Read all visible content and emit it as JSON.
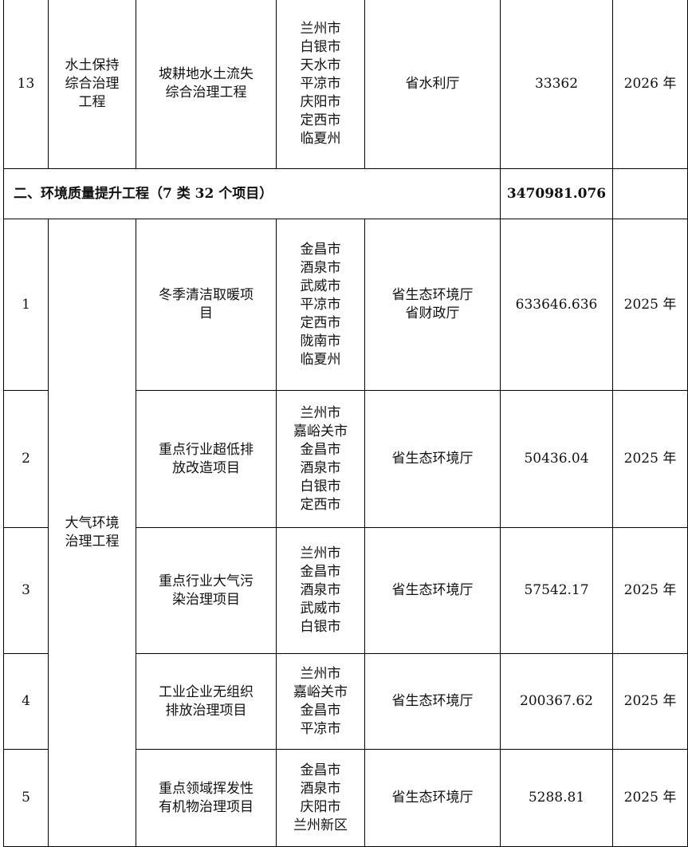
{
  "rows_top": [
    {
      "no": "13",
      "category": "水土保持\n综合治理\n工程",
      "project": "坡耕地水土流失\n综合治理工程",
      "regions": "兰州市\n白银市\n天水市\n平凉市\n庆阳市\n定西市\n临夏州",
      "dept": "省水利厅",
      "amount": "33362",
      "year": "2026 年"
    }
  ],
  "section": {
    "title": "二、环境质量提升工程（7 类 32 个项目）",
    "amount": "3470981.076",
    "year": ""
  },
  "group_category": "大气环境\n治理工程",
  "rows": [
    {
      "no": "1",
      "project": "冬季清洁取暖项\n目",
      "regions": "金昌市\n酒泉市\n武威市\n平凉市\n定西市\n陇南市\n临夏州",
      "dept": "省生态环境厅\n省财政厅",
      "amount": "633646.636",
      "year": "2025 年"
    },
    {
      "no": "2",
      "project": "重点行业超低排\n放改造项目",
      "regions": "兰州市\n嘉峪关市\n金昌市\n酒泉市\n白银市\n定西市",
      "dept": "省生态环境厅",
      "amount": "50436.04",
      "year": "2025 年"
    },
    {
      "no": "3",
      "project": "重点行业大气污\n染治理项目",
      "regions": "兰州市\n金昌市\n酒泉市\n武威市\n白银市",
      "dept": "省生态环境厅",
      "amount": "57542.17",
      "year": "2025 年"
    },
    {
      "no": "4",
      "project": "工业企业无组织\n排放治理项目",
      "regions": "兰州市\n嘉峪关市\n金昌市\n平凉市",
      "dept": "省生态环境厅",
      "amount": "200367.62",
      "year": "2025 年"
    },
    {
      "no": "5",
      "project": "重点领域挥发性\n有机物治理项目",
      "regions": "金昌市\n酒泉市\n庆阳市\n兰州新区",
      "dept": "省生态环境厅",
      "amount": "5288.81",
      "year": "2025 年"
    }
  ]
}
